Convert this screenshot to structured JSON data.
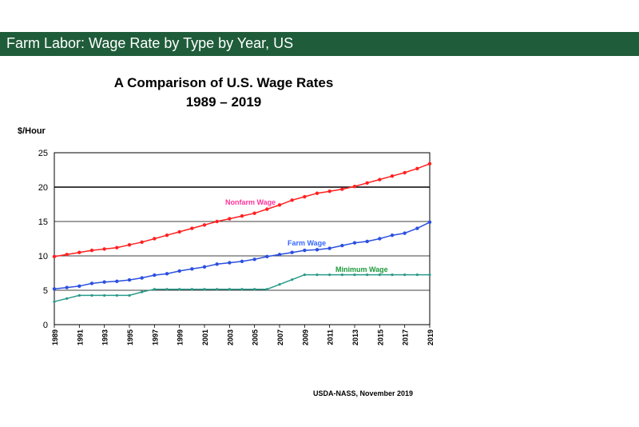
{
  "banner": {
    "title": "Farm Labor: Wage Rate by Type by Year, US",
    "color": "#1f5c3a"
  },
  "footer": {
    "source": "USDA-NASS,  November 2019"
  },
  "chart_data": {
    "type": "line",
    "title": "A Comparison of U.S. Wage Rates",
    "subtitle": "1989 – 2019",
    "ylabel": "$/Hour",
    "xlabel": "",
    "ylim": [
      0,
      25
    ],
    "yticks": [
      0,
      5,
      10,
      15,
      20,
      25
    ],
    "xlim": [
      1989,
      2019
    ],
    "xticks": [
      "1989",
      "1991",
      "1993",
      "1995",
      "1997",
      "1999",
      "2001",
      "2003",
      "2005",
      "2007",
      "2009",
      "2011",
      "2013",
      "2015",
      "2017",
      "2019"
    ],
    "grid": "horizontal",
    "x": [
      1989,
      1990,
      1991,
      1992,
      1993,
      1994,
      1995,
      1996,
      1997,
      1998,
      1999,
      2000,
      2001,
      2002,
      2003,
      2004,
      2005,
      2006,
      2007,
      2008,
      2009,
      2010,
      2011,
      2012,
      2013,
      2014,
      2015,
      2016,
      2017,
      2018,
      2019
    ],
    "series": [
      {
        "name": "Nonfarm Wage",
        "color": "#ff2020",
        "label_color": "#ff3399",
        "values": [
          9.9,
          10.2,
          10.5,
          10.8,
          11.0,
          11.2,
          11.6,
          12.0,
          12.5,
          13.0,
          13.5,
          14.0,
          14.5,
          15.0,
          15.4,
          15.8,
          16.2,
          16.8,
          17.4,
          18.1,
          18.6,
          19.1,
          19.4,
          19.7,
          20.1,
          20.6,
          21.1,
          21.6,
          22.1,
          22.7,
          23.4
        ]
      },
      {
        "name": "Farm Wage",
        "color": "#2b4fe0",
        "label_color": "#3366ff",
        "values": [
          5.2,
          5.4,
          5.6,
          6.0,
          6.2,
          6.3,
          6.5,
          6.8,
          7.2,
          7.4,
          7.8,
          8.1,
          8.4,
          8.8,
          9.0,
          9.2,
          9.5,
          9.9,
          10.2,
          10.5,
          10.8,
          10.9,
          11.1,
          11.5,
          11.9,
          12.1,
          12.5,
          13.0,
          13.3,
          14.0,
          14.9
        ]
      },
      {
        "name": "Minimum Wage",
        "color": "#2a9a8a",
        "label_color": "#1a9a3a",
        "values": [
          3.35,
          3.8,
          4.25,
          4.25,
          4.25,
          4.25,
          4.25,
          4.75,
          5.15,
          5.15,
          5.15,
          5.15,
          5.15,
          5.15,
          5.15,
          5.15,
          5.15,
          5.15,
          5.85,
          6.55,
          7.25,
          7.25,
          7.25,
          7.25,
          7.25,
          7.25,
          7.25,
          7.25,
          7.25,
          7.25,
          7.25
        ]
      }
    ]
  }
}
